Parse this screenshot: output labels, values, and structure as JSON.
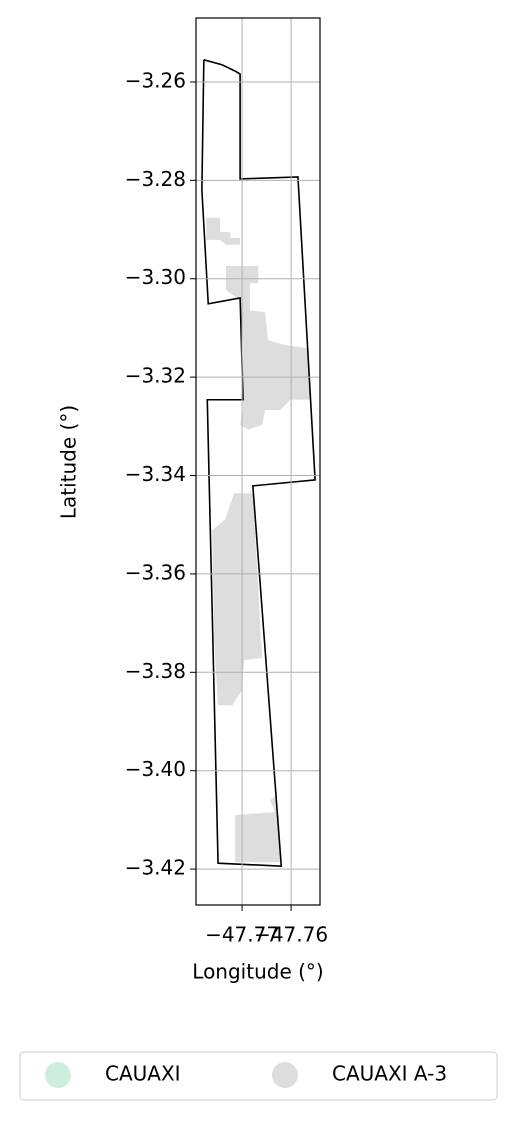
{
  "chart_data": {
    "type": "map",
    "xlabel": "Longitude (°)",
    "ylabel": "Latitude (°)",
    "xlim": [
      -47.7794,
      -47.7541
    ],
    "ylim": [
      -3.4273,
      -3.247
    ],
    "xticks": [
      {
        "value": -47.77,
        "label": "−47.77"
      },
      {
        "value": -47.76,
        "label": "−47.76"
      }
    ],
    "yticks": [
      {
        "value": -3.26,
        "label": "−3.26"
      },
      {
        "value": -3.28,
        "label": "−3.28"
      },
      {
        "value": -3.3,
        "label": "−3.30"
      },
      {
        "value": -3.32,
        "label": "−3.32"
      },
      {
        "value": -3.34,
        "label": "−3.34"
      },
      {
        "value": -3.36,
        "label": "−3.36"
      },
      {
        "value": -3.38,
        "label": "−3.38"
      },
      {
        "value": -3.4,
        "label": "−3.40"
      },
      {
        "value": -3.42,
        "label": "−3.42"
      }
    ],
    "grid": true,
    "legend_loc": "lower center",
    "outline": {
      "color": "#000000",
      "x": [
        -47.7778,
        -47.7741,
        -47.7714,
        -47.7704,
        -47.7704,
        -47.7586,
        -47.7551,
        -47.7678,
        -47.762,
        -47.7749,
        -47.7771,
        -47.7698,
        -47.7704,
        -47.7769,
        -47.7782,
        -47.7778
      ],
      "y": [
        -3.2555,
        -3.2565,
        -3.2578,
        -3.2584,
        -3.2797,
        -3.2793,
        -3.3409,
        -3.3421,
        -3.4194,
        -3.4188,
        -3.3246,
        -3.3246,
        -3.3039,
        -3.3051,
        -3.282,
        -3.2555
      ]
    },
    "series": [
      {
        "name": "CAUAXI",
        "color": "#cdeedd",
        "shapes": []
      },
      {
        "name": "CAUAXI A-3",
        "color": "#dddddd",
        "shapes": [
          {
            "x": [
              -47.7773,
              -47.7745,
              -47.7745,
              -47.7724,
              -47.7724,
              -47.7704,
              -47.7704,
              -47.7733,
              -47.7745,
              -47.7773
            ],
            "y": [
              -3.2876,
              -3.2876,
              -3.2905,
              -3.2905,
              -3.2917,
              -3.2917,
              -3.2931,
              -3.2931,
              -3.2921,
              -3.2921
            ]
          },
          {
            "x": [
              -47.7733,
              -47.7667,
              -47.7667,
              -47.7684,
              -47.7684,
              -47.7653,
              -47.7647,
              -47.7612,
              -47.7565,
              -47.7561,
              -47.7602,
              -47.7622,
              -47.7653,
              -47.7659,
              -47.7688,
              -47.7704,
              -47.7698,
              -47.7698,
              -47.7704,
              -47.7733
            ],
            "y": [
              -3.2974,
              -3.2974,
              -3.3009,
              -3.3009,
              -3.3064,
              -3.3068,
              -3.3125,
              -3.3135,
              -3.3141,
              -3.3246,
              -3.3246,
              -3.3267,
              -3.3267,
              -3.3297,
              -3.3307,
              -3.3297,
              -3.3267,
              -3.3125,
              -3.3043,
              -3.3023
            ]
          },
          {
            "x": [
              -47.7716,
              -47.7678,
              -47.7659,
              -47.7696,
              -47.77,
              -47.772,
              -47.7749,
              -47.7757,
              -47.7761,
              -47.7735
            ],
            "y": [
              -3.3436,
              -3.3436,
              -3.3771,
              -3.3775,
              -3.3836,
              -3.3867,
              -3.3867,
              -3.3734,
              -3.3511,
              -3.349
            ]
          },
          {
            "x": [
              -47.7714,
              -47.7633,
              -47.7643,
              -47.7631,
              -47.762,
              -47.7714
            ],
            "y": [
              -3.409,
              -3.4084,
              -3.406,
              -3.405,
              -3.4186,
              -3.4186
            ]
          }
        ]
      }
    ]
  }
}
